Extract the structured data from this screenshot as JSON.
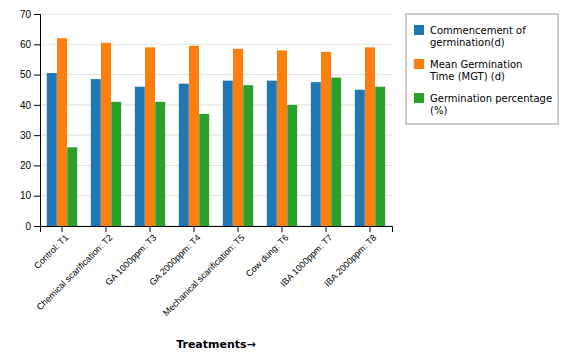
{
  "chart_data": {
    "type": "bar",
    "x_label": "Treatments→",
    "categories": [
      "Control: T1",
      "Chemical scarification: T2",
      "GA 1000ppm: T3",
      "GA 2000ppm: T4",
      "Mechanical scarification: T5",
      "Cow dung: T6",
      "IBA 1000ppm: T7",
      "IBA 2000ppm: T8"
    ],
    "series": [
      {
        "name": "Commencement of\ngermination(d)",
        "values": [
          50.5,
          48.5,
          46,
          47,
          48,
          48,
          47.5,
          45
        ]
      },
      {
        "name": "Mean Germination\nTime (MGT) (d)",
        "values": [
          62,
          60.5,
          59,
          59.5,
          58.5,
          58,
          57.5,
          59
        ]
      },
      {
        "name": "Germination percentage\n(%)",
        "values": [
          26,
          41,
          41,
          37,
          46.5,
          40,
          49,
          46
        ]
      }
    ],
    "ylim": [
      0,
      70
    ],
    "yticks": [
      0,
      10,
      20,
      30,
      40,
      50,
      60,
      70
    ],
    "grid": true,
    "legend": "right"
  }
}
